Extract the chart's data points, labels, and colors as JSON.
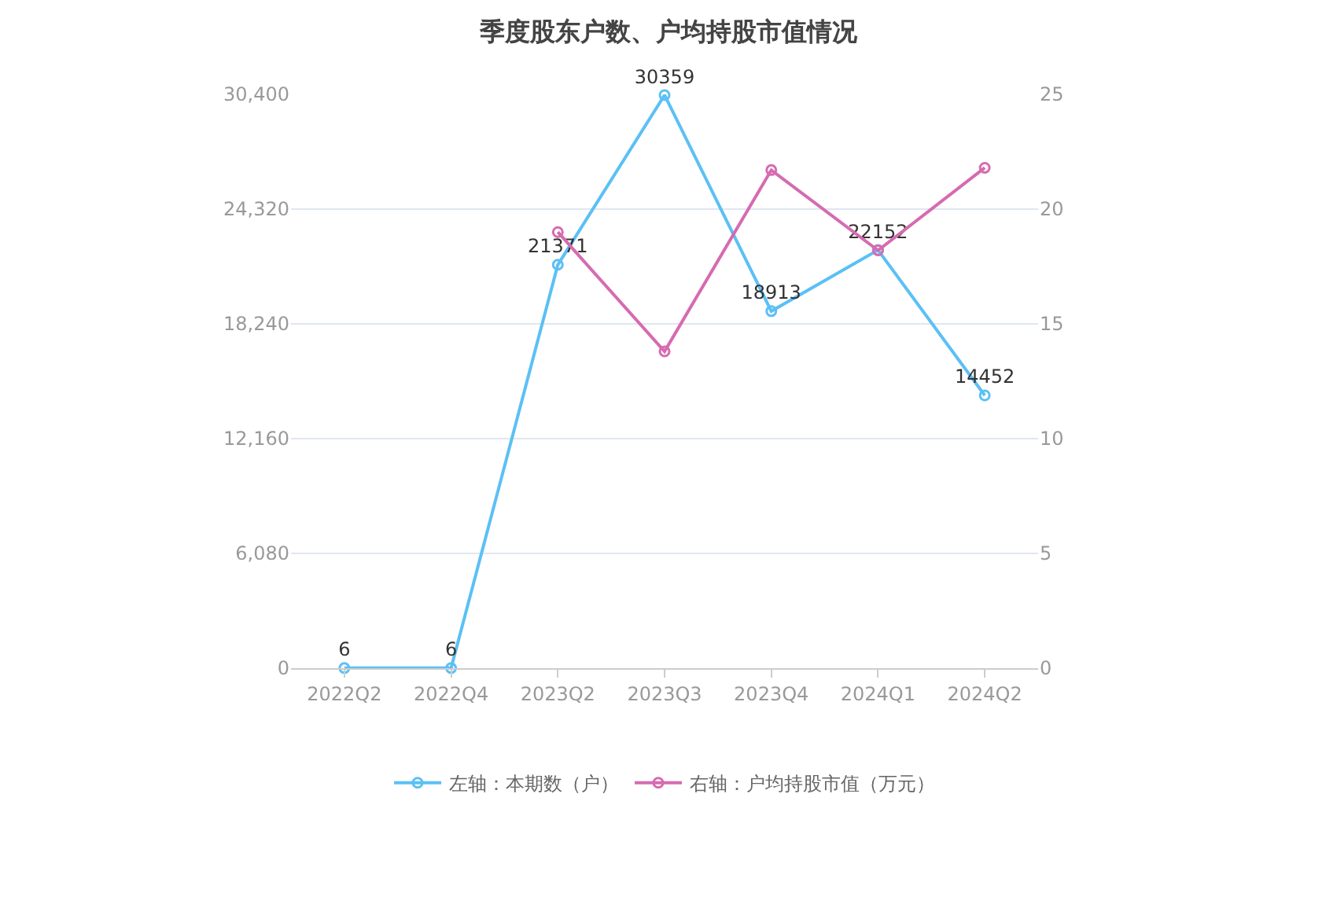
{
  "chart_data": {
    "type": "line",
    "title": "季度股东户数、户均持股市值情况",
    "categories": [
      "2022Q2",
      "2022Q4",
      "2023Q2",
      "2023Q3",
      "2023Q4",
      "2024Q1",
      "2024Q2"
    ],
    "series": [
      {
        "name": "左轴：本期数（户）",
        "color": "#5bc0f5",
        "values": [
          6,
          6,
          21371,
          30359,
          18913,
          22152,
          14452
        ],
        "value_labels": [
          "6",
          "6",
          "21371",
          "30359",
          "18913",
          "22152",
          "14452"
        ]
      },
      {
        "name": "右轴：户均持股市值（万元）",
        "color": "#d66bb0",
        "axis": "y2",
        "values": [
          null,
          null,
          19.0,
          13.8,
          21.7,
          18.2,
          21.8
        ]
      }
    ],
    "ylim": [
      0,
      30400
    ],
    "yticks": [
      0,
      {
        "value": 6080,
        "label": "6,080"
      },
      {
        "value": 12160,
        "label": "12,160"
      },
      {
        "value": 18240,
        "label": "18,240"
      },
      {
        "value": 24320,
        "label": "24,320"
      },
      {
        "value": 30400,
        "label": "30,400"
      }
    ],
    "y2lim": [
      0,
      25
    ],
    "y2ticks": [
      0,
      5,
      10,
      15,
      20,
      25
    ],
    "grid": "y",
    "legend": "bottom",
    "marker": "circle",
    "line_style": "solid"
  }
}
